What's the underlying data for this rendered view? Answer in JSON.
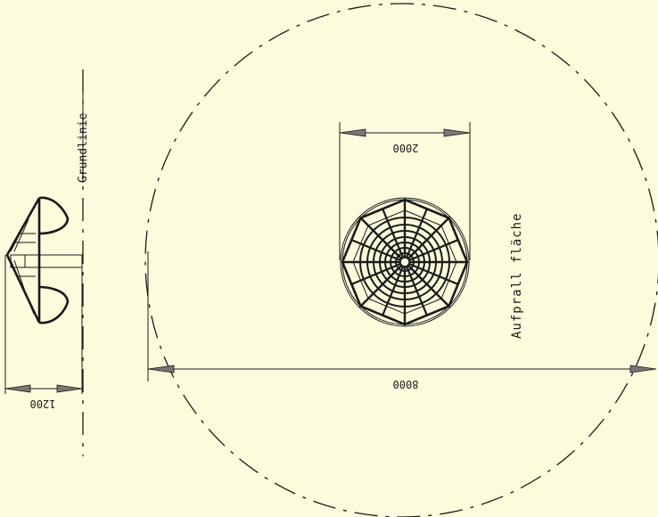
{
  "labels": {
    "baseline": "Grundlinie",
    "impact_area": "Aufprall fläche"
  },
  "dimensions": {
    "equipment_width": "2000",
    "impact_area_width": "8000",
    "side_view_width": "1200"
  },
  "colors": {
    "background": "#fcfcdc",
    "line": "#1a1a1a",
    "arrowhead": "#777777"
  }
}
